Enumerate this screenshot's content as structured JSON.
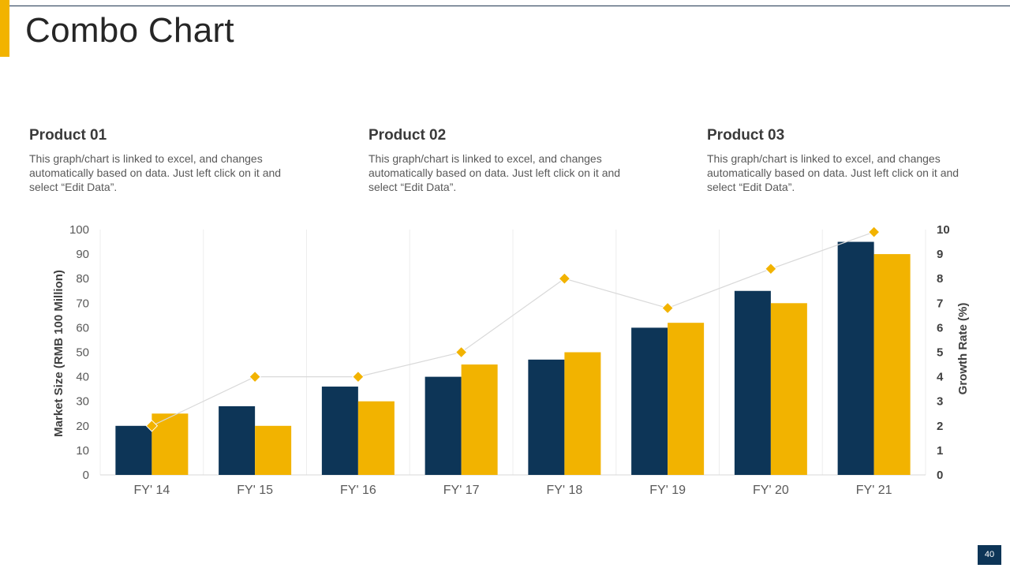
{
  "slide": {
    "title": "Combo Chart",
    "page_number": "40"
  },
  "products": [
    {
      "name": "Product 01",
      "description": "This graph/chart is linked to excel, and changes automatically based on data. Just left click on it and select “Edit Data”."
    },
    {
      "name": "Product 02",
      "description": "This graph/chart is linked to excel, and changes automatically based on data. Just left click on it and select “Edit Data”."
    },
    {
      "name": "Product 03",
      "description": "This graph/chart is linked to excel, and changes automatically based on data. Just left click on it and select “Edit Data”."
    }
  ],
  "colors": {
    "accent": "#f2b300",
    "navy": "#0d3557",
    "line": "#d9d9d9",
    "marker": "#f2b300"
  },
  "chart_data": {
    "type": "bar",
    "combo": "bar+line",
    "categories": [
      "FY' 14",
      "FY' 15",
      "FY' 16",
      "FY' 17",
      "FY' 18",
      "FY' 19",
      "FY' 20",
      "FY' 21"
    ],
    "series": [
      {
        "type": "bar",
        "axis": "left",
        "color": "#0d3557",
        "values": [
          20,
          28,
          36,
          40,
          47,
          60,
          75,
          95
        ]
      },
      {
        "type": "bar",
        "axis": "left",
        "color": "#f2b300",
        "values": [
          25,
          20,
          30,
          45,
          50,
          62,
          70,
          90
        ]
      },
      {
        "type": "line",
        "axis": "right",
        "color": "#d9d9d9",
        "marker": "diamond",
        "marker_color": "#f2b300",
        "values": [
          2,
          4,
          4,
          5,
          8,
          6.8,
          8.4,
          9.9
        ]
      }
    ],
    "ylabel": "Market Size (RMB 100 Million)",
    "ylim": [
      0,
      100
    ],
    "yticks": [
      0,
      10,
      20,
      30,
      40,
      50,
      60,
      70,
      80,
      90,
      100
    ],
    "y2label": "Growth Rate (%)",
    "y2lim": [
      0,
      10
    ],
    "y2ticks": [
      0,
      1,
      2,
      3,
      4,
      5,
      6,
      7,
      8,
      9,
      10
    ],
    "grid": "vertical",
    "legend": "none"
  }
}
